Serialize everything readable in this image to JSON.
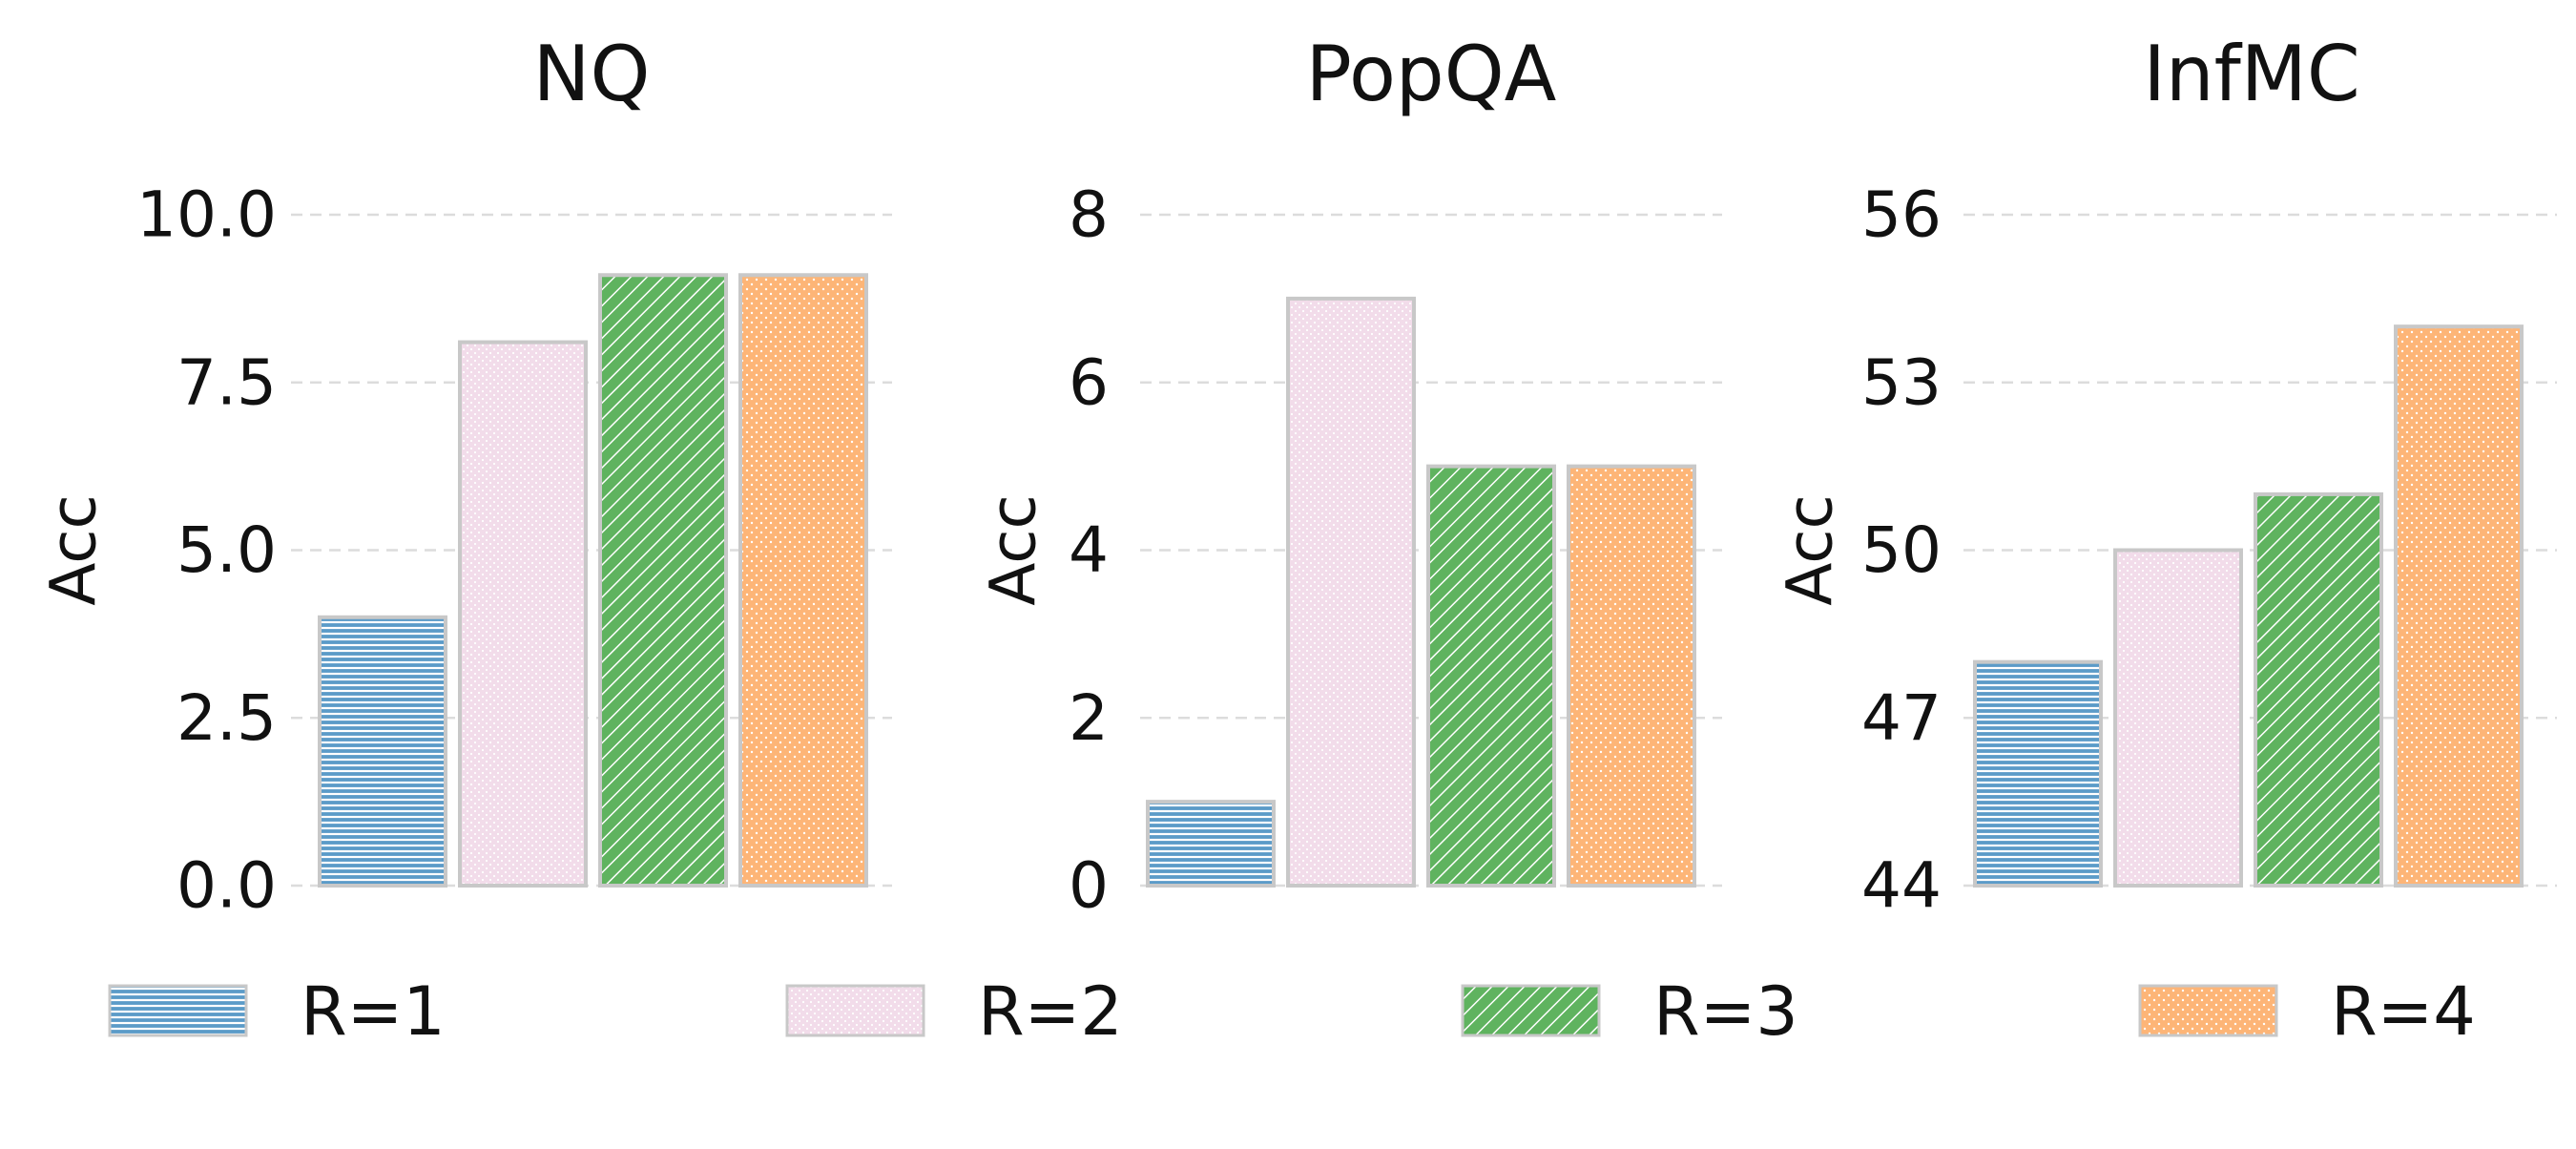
{
  "chart_data": [
    {
      "type": "bar",
      "title": "NQ",
      "ylabel": "Acc",
      "xlabel": "",
      "categories": [
        "R=1",
        "R=2",
        "R=3",
        "R=4"
      ],
      "values": [
        4.0,
        8.1,
        9.1,
        9.1
      ],
      "ylim": [
        0,
        10
      ],
      "yticks": [
        "0.0",
        "2.5",
        "5.0",
        "7.5",
        "10.0"
      ],
      "ytick_values": [
        0,
        2.5,
        5,
        7.5,
        10
      ],
      "grid": true
    },
    {
      "type": "bar",
      "title": "PopQA",
      "ylabel": "Acc",
      "xlabel": "",
      "categories": [
        "R=1",
        "R=2",
        "R=3",
        "R=4"
      ],
      "values": [
        1.0,
        7.0,
        5.0,
        5.0
      ],
      "ylim": [
        0,
        8
      ],
      "yticks": [
        "0",
        "2",
        "4",
        "6",
        "8"
      ],
      "ytick_values": [
        0,
        2,
        4,
        6,
        8
      ],
      "grid": true
    },
    {
      "type": "bar",
      "title": "InfMC",
      "ylabel": "Acc",
      "xlabel": "",
      "categories": [
        "R=1",
        "R=2",
        "R=3",
        "R=4"
      ],
      "values": [
        48,
        50,
        51,
        54
      ],
      "ylim": [
        44,
        56
      ],
      "yticks": [
        "44",
        "47",
        "50",
        "53",
        "56"
      ],
      "ytick_values": [
        44,
        47,
        50,
        53,
        56
      ],
      "grid": true
    }
  ],
  "legend": {
    "placement": "bottom",
    "entries": [
      {
        "label": "R=1",
        "color": "#5b9bc8",
        "hatch": "horizontal-lines"
      },
      {
        "label": "R=2",
        "color": "#f2dcea",
        "hatch": "dots"
      },
      {
        "label": "R=3",
        "color": "#5fb35f",
        "hatch": "diagonal-lines"
      },
      {
        "label": "R=4",
        "color": "#fdb577",
        "hatch": "dots"
      }
    ]
  },
  "colors": {
    "bar_edge": "#c8c8c8",
    "grid": "#dcdcdc"
  }
}
